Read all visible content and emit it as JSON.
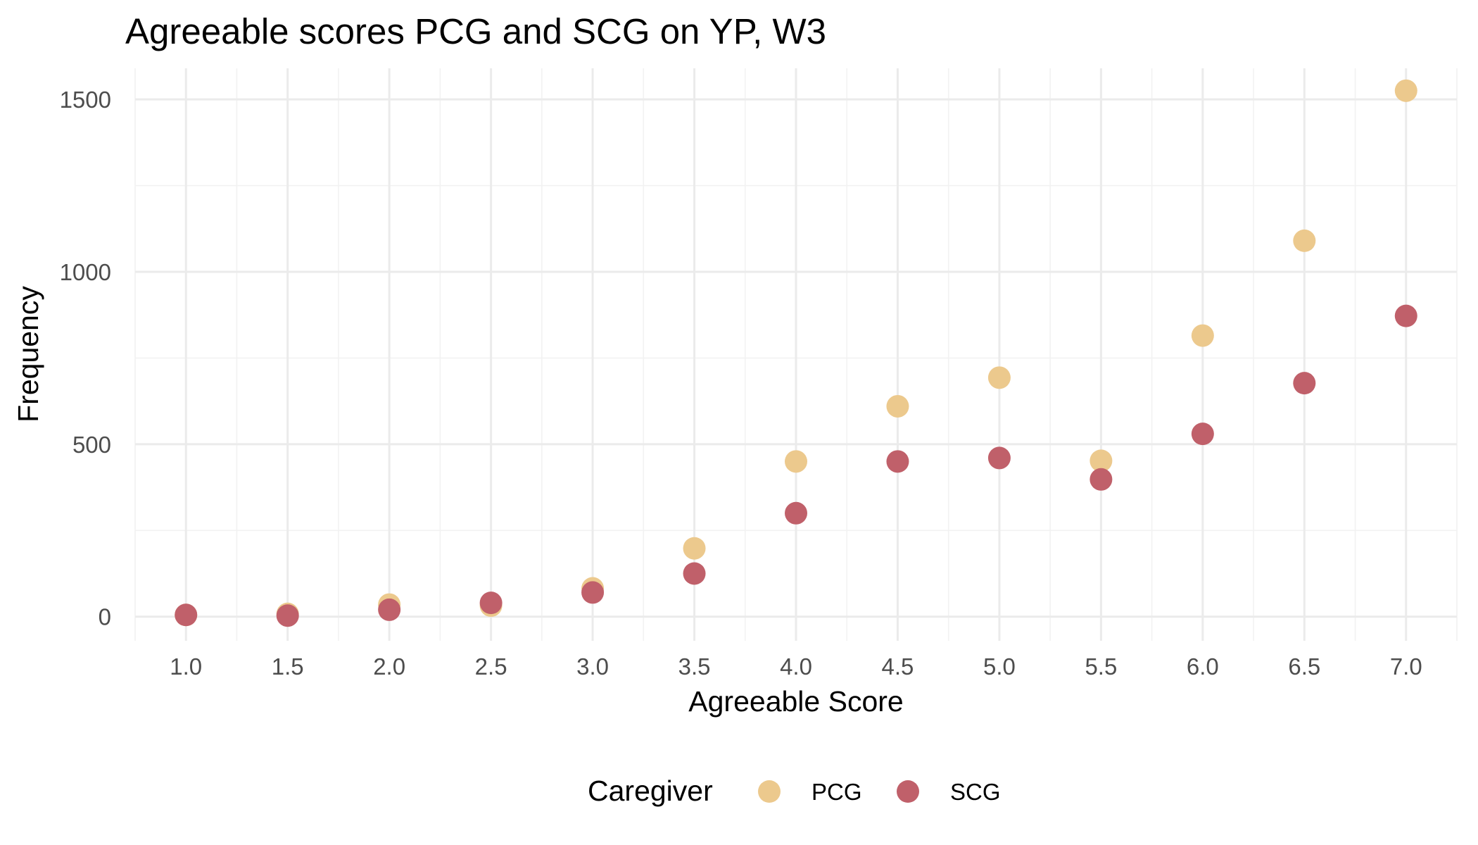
{
  "chart_data": {
    "type": "scatter",
    "title": "Agreeable scores PCG and SCG on YP, W3",
    "xlabel": "Agreeable Score",
    "ylabel": "Frequency",
    "xlim": [
      0.75,
      7.25
    ],
    "ylim": [
      -70,
      1590
    ],
    "x_ticks": [
      1.0,
      1.5,
      2.0,
      2.5,
      3.0,
      3.5,
      4.0,
      4.5,
      5.0,
      5.5,
      6.0,
      6.5,
      7.0
    ],
    "x_tick_labels": [
      "1.0",
      "1.5",
      "2.0",
      "2.5",
      "3.0",
      "3.5",
      "4.0",
      "4.5",
      "5.0",
      "5.5",
      "6.0",
      "6.5",
      "7.0"
    ],
    "y_ticks": [
      0,
      500,
      1000,
      1500
    ],
    "y_tick_labels": [
      "0",
      "500",
      "1000",
      "1500"
    ],
    "grid": true,
    "legend": {
      "title": "Caregiver",
      "position": "bottom"
    },
    "x": [
      1.0,
      1.5,
      2.0,
      2.5,
      3.0,
      3.5,
      4.0,
      4.5,
      5.0,
      5.5,
      6.0,
      6.5,
      7.0
    ],
    "series": [
      {
        "name": "PCG",
        "color": "#ecc98d",
        "values": [
          5,
          8,
          35,
          32,
          82,
          198,
          450,
          610,
          693,
          452,
          815,
          1090,
          1525
        ]
      },
      {
        "name": "SCG",
        "color": "#c0606a",
        "values": [
          5,
          3,
          20,
          40,
          70,
          125,
          300,
          450,
          460,
          398,
          530,
          677,
          872
        ]
      }
    ]
  }
}
